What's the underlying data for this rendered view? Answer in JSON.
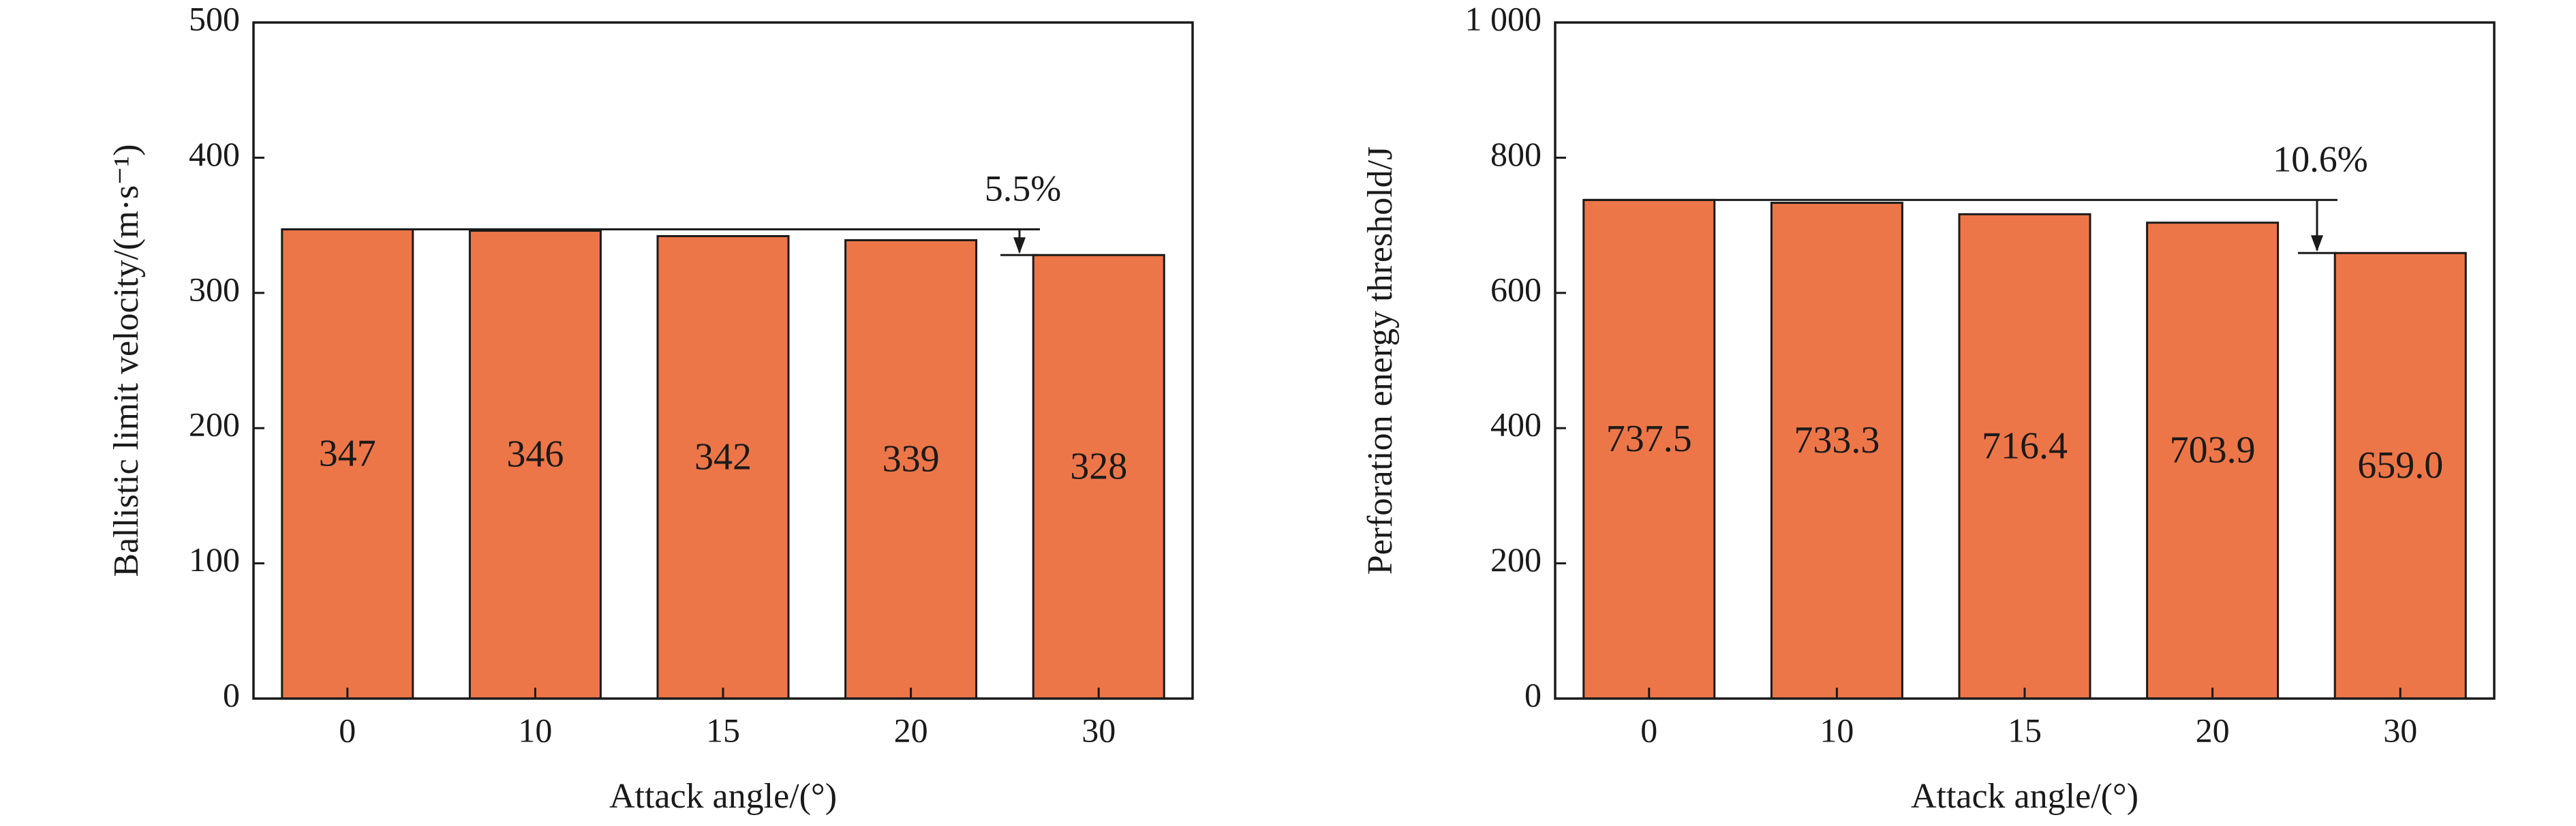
{
  "chart_data": [
    {
      "type": "bar",
      "categories": [
        "0",
        "10",
        "15",
        "20",
        "30"
      ],
      "values": [
        347,
        346,
        342,
        339,
        328
      ],
      "value_labels": [
        "347",
        "346",
        "342",
        "339",
        "328"
      ],
      "xlabel": "Attack angle/(°)",
      "ylabel": "Ballistic limit velocity/(m·s⁻¹)",
      "ylim": [
        0,
        500
      ],
      "yticks": [
        0,
        100,
        200,
        300,
        400,
        500
      ],
      "ytick_labels": [
        "0",
        "100",
        "200",
        "300",
        "400",
        "500"
      ],
      "grid": false,
      "bar_color": "#ed7648",
      "annotation": {
        "text": "5.5%",
        "from_value": 347,
        "to_value": 328
      }
    },
    {
      "type": "bar",
      "categories": [
        "0",
        "10",
        "15",
        "20",
        "30"
      ],
      "values": [
        737.5,
        733.3,
        716.4,
        703.9,
        659.0
      ],
      "value_labels": [
        "737.5",
        "733.3",
        "716.4",
        "703.9",
        "659.0"
      ],
      "xlabel": "Attack angle/(°)",
      "ylabel": "Perforation energy threshold/J",
      "ylim": [
        0,
        1000
      ],
      "yticks": [
        0,
        200,
        400,
        600,
        800,
        1000
      ],
      "ytick_labels": [
        "0",
        "200",
        "400",
        "600",
        "800",
        "1 000"
      ],
      "grid": false,
      "bar_color": "#ed7648",
      "annotation": {
        "text": "10.6%",
        "from_value": 737.5,
        "to_value": 659.0
      }
    }
  ]
}
